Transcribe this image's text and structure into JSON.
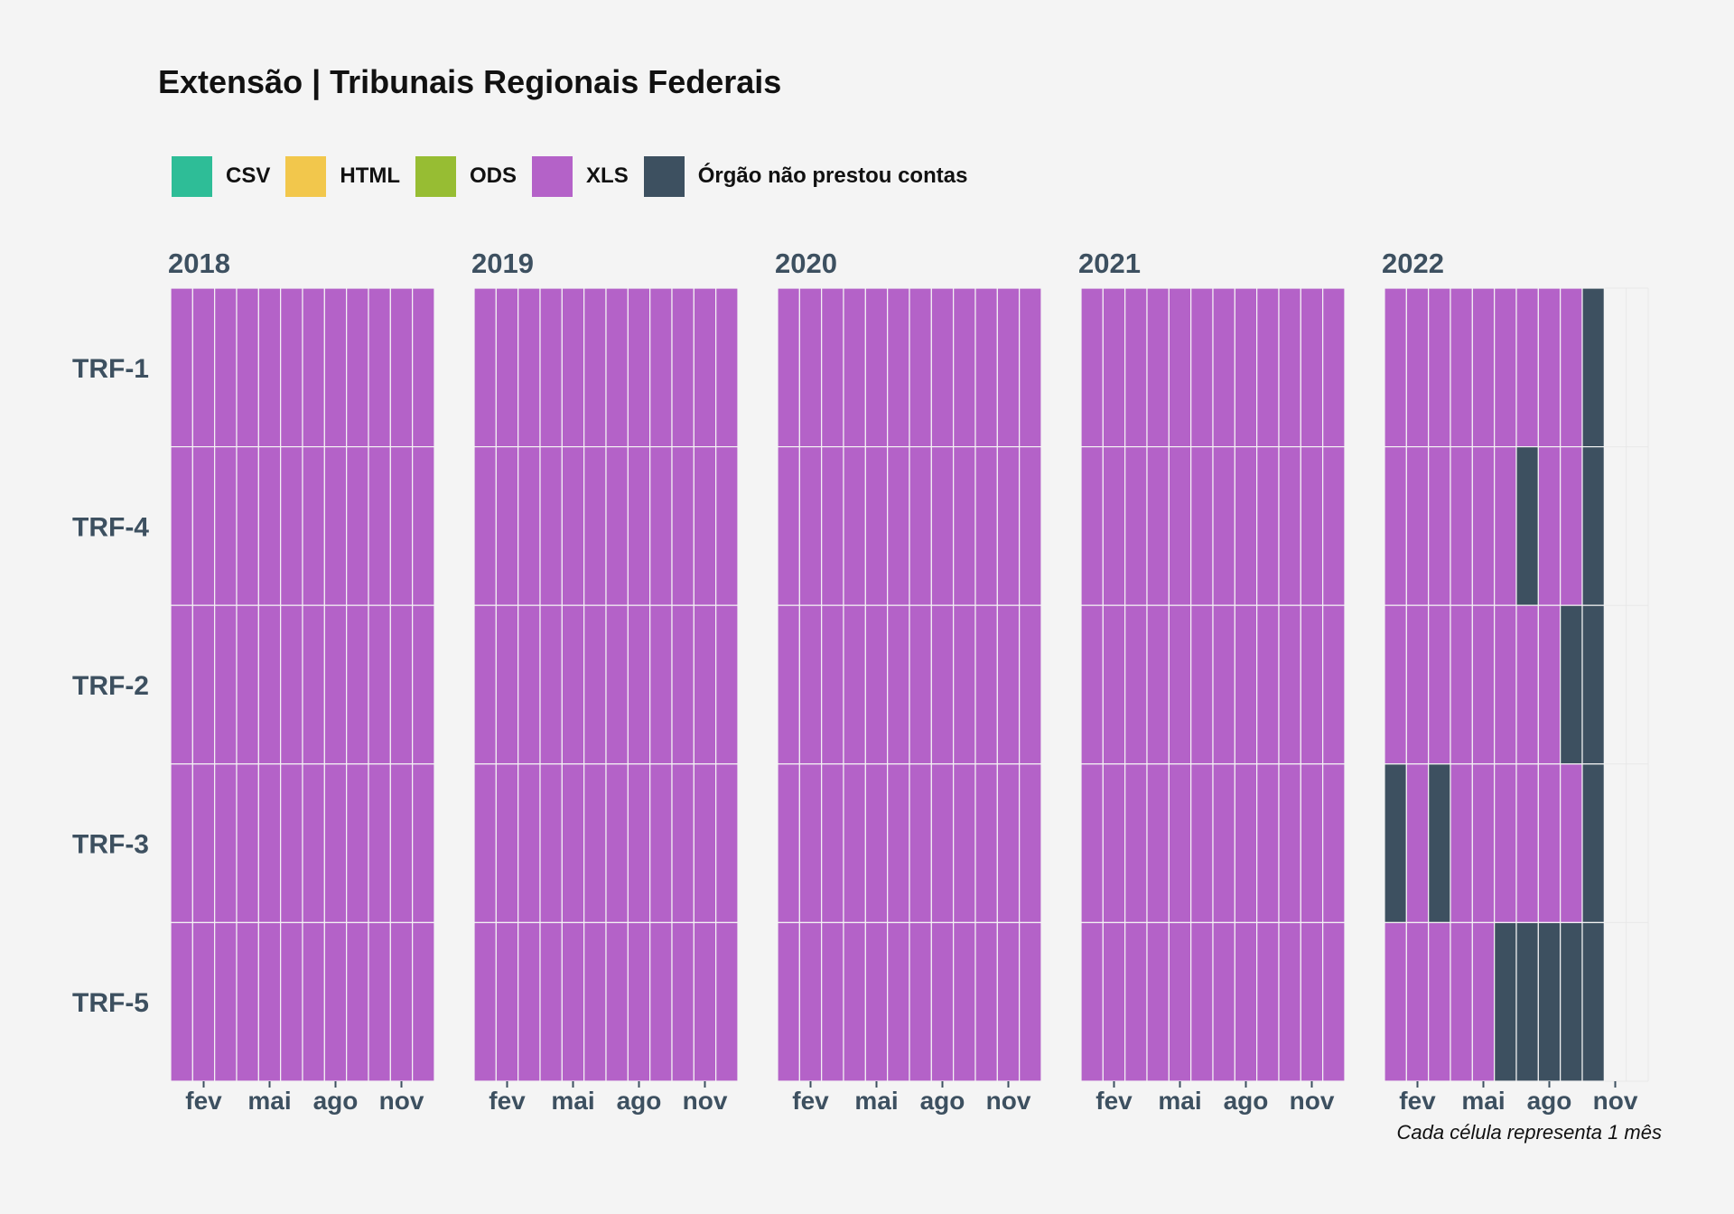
{
  "chart_data": {
    "type": "heatmap",
    "title": "Extensão | Tribunais Regionais Federais",
    "caption": "Cada célula representa 1 mês",
    "legend": {
      "placement": "top-left",
      "entries": [
        {
          "label": "CSV",
          "color": "#2ebd97"
        },
        {
          "label": "HTML",
          "color": "#f2c74c"
        },
        {
          "label": "ODS",
          "color": "#97bd33"
        },
        {
          "label": "XLS",
          "color": "#b462c8"
        },
        {
          "label": "Órgão não prestou contas",
          "color": "#3d5060"
        }
      ]
    },
    "years": [
      "2018",
      "2019",
      "2020",
      "2021",
      "2022"
    ],
    "rows": [
      "TRF-1",
      "TRF-4",
      "TRF-2",
      "TRF-3",
      "TRF-5"
    ],
    "x_tick_labels": [
      {
        "month": 2,
        "label": "fev"
      },
      {
        "month": 5,
        "label": "mai"
      },
      {
        "month": 8,
        "label": "ago"
      },
      {
        "month": 11,
        "label": "nov"
      }
    ],
    "status_note": "per month value: XLS = published as XLS, ND = Órgão não prestou contas, null = no data",
    "cells": {
      "2018": {
        "TRF-1": [
          "XLS",
          "XLS",
          "XLS",
          "XLS",
          "XLS",
          "XLS",
          "XLS",
          "XLS",
          "XLS",
          "XLS",
          "XLS",
          "XLS"
        ],
        "TRF-4": [
          "XLS",
          "XLS",
          "XLS",
          "XLS",
          "XLS",
          "XLS",
          "XLS",
          "XLS",
          "XLS",
          "XLS",
          "XLS",
          "XLS"
        ],
        "TRF-2": [
          "XLS",
          "XLS",
          "XLS",
          "XLS",
          "XLS",
          "XLS",
          "XLS",
          "XLS",
          "XLS",
          "XLS",
          "XLS",
          "XLS"
        ],
        "TRF-3": [
          "XLS",
          "XLS",
          "XLS",
          "XLS",
          "XLS",
          "XLS",
          "XLS",
          "XLS",
          "XLS",
          "XLS",
          "XLS",
          "XLS"
        ],
        "TRF-5": [
          "XLS",
          "XLS",
          "XLS",
          "XLS",
          "XLS",
          "XLS",
          "XLS",
          "XLS",
          "XLS",
          "XLS",
          "XLS",
          "XLS"
        ]
      },
      "2019": {
        "TRF-1": [
          "XLS",
          "XLS",
          "XLS",
          "XLS",
          "XLS",
          "XLS",
          "XLS",
          "XLS",
          "XLS",
          "XLS",
          "XLS",
          "XLS"
        ],
        "TRF-4": [
          "XLS",
          "XLS",
          "XLS",
          "XLS",
          "XLS",
          "XLS",
          "XLS",
          "XLS",
          "XLS",
          "XLS",
          "XLS",
          "XLS"
        ],
        "TRF-2": [
          "XLS",
          "XLS",
          "XLS",
          "XLS",
          "XLS",
          "XLS",
          "XLS",
          "XLS",
          "XLS",
          "XLS",
          "XLS",
          "XLS"
        ],
        "TRF-3": [
          "XLS",
          "XLS",
          "XLS",
          "XLS",
          "XLS",
          "XLS",
          "XLS",
          "XLS",
          "XLS",
          "XLS",
          "XLS",
          "XLS"
        ],
        "TRF-5": [
          "XLS",
          "XLS",
          "XLS",
          "XLS",
          "XLS",
          "XLS",
          "XLS",
          "XLS",
          "XLS",
          "XLS",
          "XLS",
          "XLS"
        ]
      },
      "2020": {
        "TRF-1": [
          "XLS",
          "XLS",
          "XLS",
          "XLS",
          "XLS",
          "XLS",
          "XLS",
          "XLS",
          "XLS",
          "XLS",
          "XLS",
          "XLS"
        ],
        "TRF-4": [
          "XLS",
          "XLS",
          "XLS",
          "XLS",
          "XLS",
          "XLS",
          "XLS",
          "XLS",
          "XLS",
          "XLS",
          "XLS",
          "XLS"
        ],
        "TRF-2": [
          "XLS",
          "XLS",
          "XLS",
          "XLS",
          "XLS",
          "XLS",
          "XLS",
          "XLS",
          "XLS",
          "XLS",
          "XLS",
          "XLS"
        ],
        "TRF-3": [
          "XLS",
          "XLS",
          "XLS",
          "XLS",
          "XLS",
          "XLS",
          "XLS",
          "XLS",
          "XLS",
          "XLS",
          "XLS",
          "XLS"
        ],
        "TRF-5": [
          "XLS",
          "XLS",
          "XLS",
          "XLS",
          "XLS",
          "XLS",
          "XLS",
          "XLS",
          "XLS",
          "XLS",
          "XLS",
          "XLS"
        ]
      },
      "2021": {
        "TRF-1": [
          "XLS",
          "XLS",
          "XLS",
          "XLS",
          "XLS",
          "XLS",
          "XLS",
          "XLS",
          "XLS",
          "XLS",
          "XLS",
          "XLS"
        ],
        "TRF-4": [
          "XLS",
          "XLS",
          "XLS",
          "XLS",
          "XLS",
          "XLS",
          "XLS",
          "XLS",
          "XLS",
          "XLS",
          "XLS",
          "XLS"
        ],
        "TRF-2": [
          "XLS",
          "XLS",
          "XLS",
          "XLS",
          "XLS",
          "XLS",
          "XLS",
          "XLS",
          "XLS",
          "XLS",
          "XLS",
          "XLS"
        ],
        "TRF-3": [
          "XLS",
          "XLS",
          "XLS",
          "XLS",
          "XLS",
          "XLS",
          "XLS",
          "XLS",
          "XLS",
          "XLS",
          "XLS",
          "XLS"
        ],
        "TRF-5": [
          "XLS",
          "XLS",
          "XLS",
          "XLS",
          "XLS",
          "XLS",
          "XLS",
          "XLS",
          "XLS",
          "XLS",
          "XLS",
          "XLS"
        ]
      },
      "2022": {
        "TRF-1": [
          "XLS",
          "XLS",
          "XLS",
          "XLS",
          "XLS",
          "XLS",
          "XLS",
          "XLS",
          "XLS",
          "ND",
          null,
          null
        ],
        "TRF-4": [
          "XLS",
          "XLS",
          "XLS",
          "XLS",
          "XLS",
          "XLS",
          "ND",
          "XLS",
          "XLS",
          "ND",
          null,
          null
        ],
        "TRF-2": [
          "XLS",
          "XLS",
          "XLS",
          "XLS",
          "XLS",
          "XLS",
          "XLS",
          "XLS",
          "ND",
          "ND",
          null,
          null
        ],
        "TRF-3": [
          "ND",
          "XLS",
          "ND",
          "XLS",
          "XLS",
          "XLS",
          "XLS",
          "XLS",
          "XLS",
          "ND",
          null,
          null
        ],
        "TRF-5": [
          "XLS",
          "XLS",
          "XLS",
          "XLS",
          "XLS",
          "ND",
          "ND",
          "ND",
          "ND",
          "ND",
          null,
          null
        ]
      }
    }
  }
}
